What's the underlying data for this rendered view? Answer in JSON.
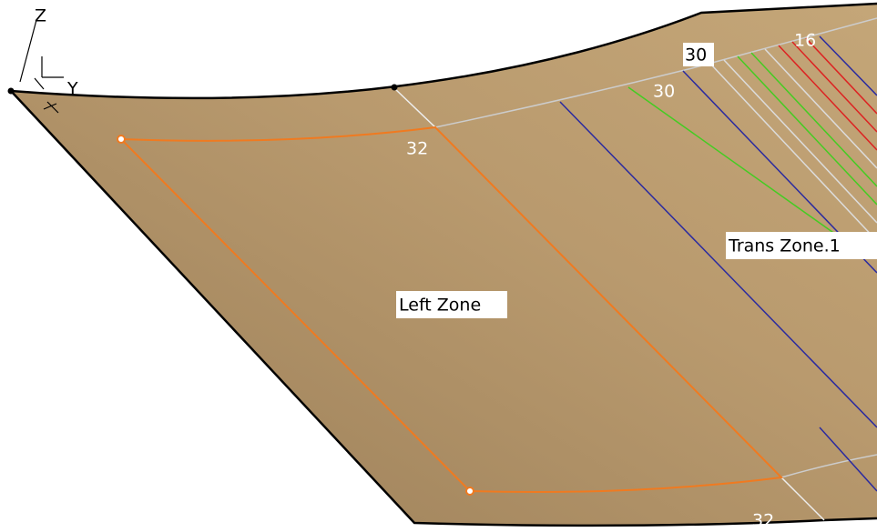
{
  "axis": {
    "z": "Z",
    "y": "Y"
  },
  "zones": [
    {
      "label": "Left Zone"
    },
    {
      "label": "Trans Zone.1"
    }
  ],
  "annotations": [
    "30",
    "30",
    "16",
    "32",
    "32"
  ]
}
